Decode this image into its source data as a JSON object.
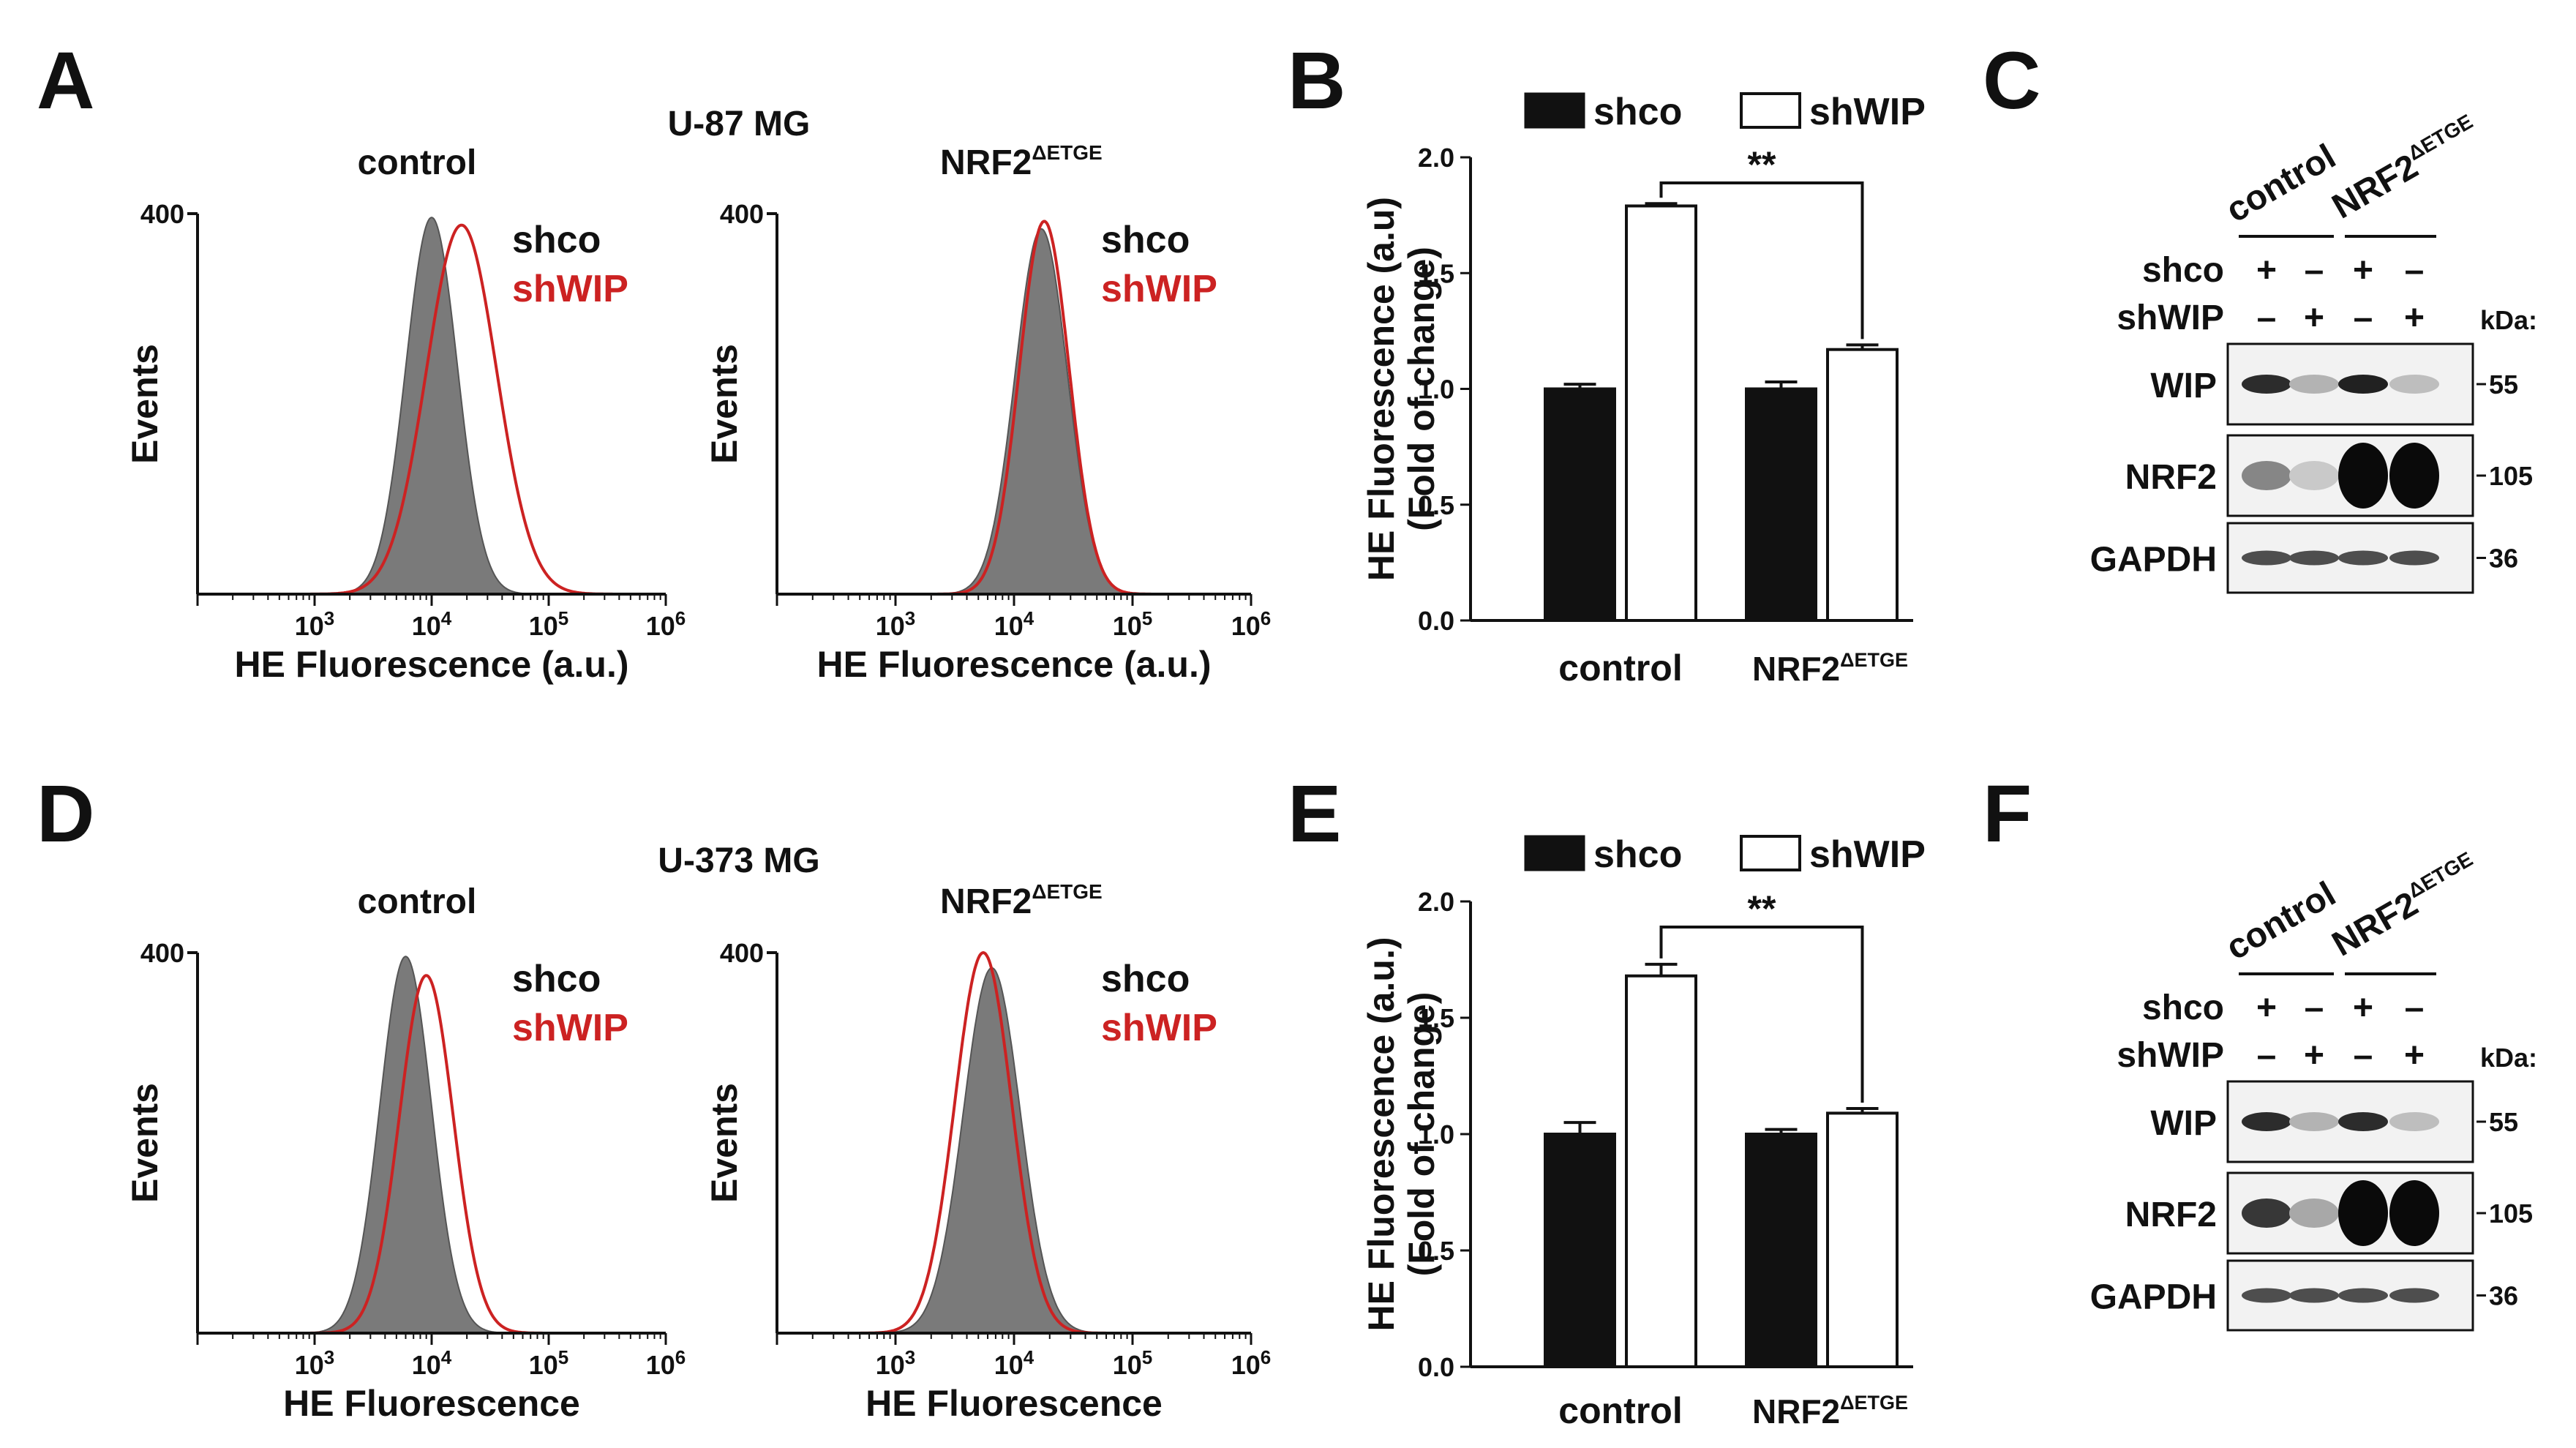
{
  "colors": {
    "red": "#cc2222",
    "gray": "#7a7a7a",
    "black": "#111111",
    "white": "#ffffff"
  },
  "panel_labels": {
    "A": "A",
    "B": "B",
    "C": "C",
    "D": "D",
    "E": "E",
    "F": "F"
  },
  "row1": {
    "cell_line": "U-87 MG"
  },
  "row2": {
    "cell_line": "U-373 MG"
  },
  "legend_labels": {
    "shco": "shco",
    "shWIP": "shWIP"
  },
  "significance": "**",
  "nrf2_label": {
    "base": "NRF2",
    "sup": "ΔETGE"
  },
  "chart_data": [
    {
      "panel": "A-control",
      "type": "area",
      "title": "control",
      "xlabel": "HE Fluorescence (a.u.)",
      "ylabel": "Events",
      "y_max_label": "400",
      "xscale": "log",
      "xlim": [
        100,
        1000000
      ],
      "xticks": [
        "10^3",
        "10^4",
        "10^5",
        "10^6"
      ],
      "series": [
        {
          "name": "shco",
          "style": "filled-gray",
          "peak_x": 10000,
          "log_sigma": 0.22,
          "peak": 0.99
        },
        {
          "name": "shWIP",
          "style": "red-line",
          "peak_x": 18000,
          "log_sigma": 0.3,
          "peak": 0.97
        }
      ]
    },
    {
      "panel": "A-NRF2",
      "type": "area",
      "title": "NRF2ΔETGE",
      "xlabel": "HE Fluorescence (a.u.)",
      "ylabel": "Events",
      "y_max_label": "400",
      "xscale": "log",
      "xlim": [
        100,
        1000000
      ],
      "xticks": [
        "10^3",
        "10^4",
        "10^5",
        "10^6"
      ],
      "series": [
        {
          "name": "shco",
          "style": "filled-gray",
          "peak_x": 17000,
          "log_sigma": 0.22,
          "peak": 0.96
        },
        {
          "name": "shWIP",
          "style": "red-line",
          "peak_x": 18000,
          "log_sigma": 0.21,
          "peak": 0.98
        }
      ]
    },
    {
      "panel": "B",
      "type": "bar",
      "title": "U-87 MG",
      "xlabel": "",
      "ylabel": "HE Fluorescence (a.u)\n(Fold of change)",
      "categories": [
        "control",
        "NRF2ΔETGE"
      ],
      "ylim": [
        0,
        2.0
      ],
      "yticks": [
        "0.0",
        "0.5",
        "1.0",
        "1.5",
        "2.0"
      ],
      "series": [
        {
          "name": "shco",
          "values": [
            1.0,
            1.0
          ],
          "errors": [
            0.02,
            0.03
          ]
        },
        {
          "name": "shWIP",
          "values": [
            1.79,
            1.17
          ],
          "errors": [
            0.01,
            0.02
          ]
        }
      ],
      "annotation": "**"
    },
    {
      "panel": "D-control",
      "type": "area",
      "title": "control",
      "xlabel": "HE Fluorescence",
      "ylabel": "Events",
      "y_max_label": "400",
      "xscale": "log",
      "xlim": [
        100,
        1000000
      ],
      "xticks": [
        "10^3",
        "10^4",
        "10^5",
        "10^6"
      ],
      "series": [
        {
          "name": "shco",
          "style": "filled-gray",
          "peak_x": 6000,
          "log_sigma": 0.22,
          "peak": 0.99
        },
        {
          "name": "shWIP",
          "style": "red-line",
          "peak_x": 9000,
          "log_sigma": 0.23,
          "peak": 0.94
        }
      ]
    },
    {
      "panel": "D-NRF2",
      "type": "area",
      "title": "NRF2ΔETGE",
      "xlabel": "HE Fluorescence",
      "ylabel": "Events",
      "y_max_label": "400",
      "xscale": "log",
      "xlim": [
        100,
        1000000
      ],
      "xticks": [
        "10^3",
        "10^4",
        "10^5",
        "10^6"
      ],
      "series": [
        {
          "name": "shco",
          "style": "filled-gray",
          "peak_x": 6500,
          "log_sigma": 0.24,
          "peak": 0.96
        },
        {
          "name": "shWIP",
          "style": "red-line",
          "peak_x": 5500,
          "log_sigma": 0.24,
          "peak": 1.0
        }
      ]
    },
    {
      "panel": "E",
      "type": "bar",
      "title": "U-373 MG",
      "xlabel": "",
      "ylabel": "HE Fluorescence (a.u.)\n(Fold of change)",
      "categories": [
        "control",
        "NRF2ΔETGE"
      ],
      "ylim": [
        0,
        2.0
      ],
      "yticks": [
        "0.0",
        "0.5",
        "1.0",
        "1.5",
        "2.0"
      ],
      "series": [
        {
          "name": "shco",
          "values": [
            1.0,
            1.0
          ],
          "errors": [
            0.05,
            0.02
          ]
        },
        {
          "name": "shWIP",
          "values": [
            1.68,
            1.09
          ],
          "errors": [
            0.05,
            0.02
          ]
        }
      ],
      "annotation": "**"
    }
  ],
  "westerns": [
    {
      "panel": "C",
      "group_labels": [
        "control",
        "NRF2ΔETGE"
      ],
      "row_labels": [
        "shco",
        "shWIP"
      ],
      "lanes": {
        "shco": [
          "+",
          "–",
          "+",
          "–"
        ],
        "shWIP": [
          "–",
          "+",
          "–",
          "+"
        ]
      },
      "kda_header": "kDa:",
      "bands": [
        {
          "protein": "WIP",
          "kda": "55",
          "intensity": [
            0.85,
            0.25,
            0.9,
            0.2
          ]
        },
        {
          "protein": "NRF2",
          "kda": "105",
          "intensity": [
            0.45,
            0.15,
            1.0,
            1.0
          ]
        },
        {
          "protein": "GAPDH",
          "kda": "36",
          "intensity": [
            0.7,
            0.7,
            0.7,
            0.7
          ]
        }
      ]
    },
    {
      "panel": "F",
      "group_labels": [
        "control",
        "NRF2ΔETGE"
      ],
      "row_labels": [
        "shco",
        "shWIP"
      ],
      "lanes": {
        "shco": [
          "+",
          "–",
          "+",
          "–"
        ],
        "shWIP": [
          "–",
          "+",
          "–",
          "+"
        ]
      },
      "kda_header": "kDa:",
      "bands": [
        {
          "protein": "WIP",
          "kda": "55",
          "intensity": [
            0.85,
            0.25,
            0.85,
            0.2
          ]
        },
        {
          "protein": "NRF2",
          "kda": "105",
          "intensity": [
            0.8,
            0.3,
            1.0,
            1.0
          ]
        },
        {
          "protein": "GAPDH",
          "kda": "36",
          "intensity": [
            0.7,
            0.7,
            0.7,
            0.7
          ]
        }
      ]
    }
  ]
}
